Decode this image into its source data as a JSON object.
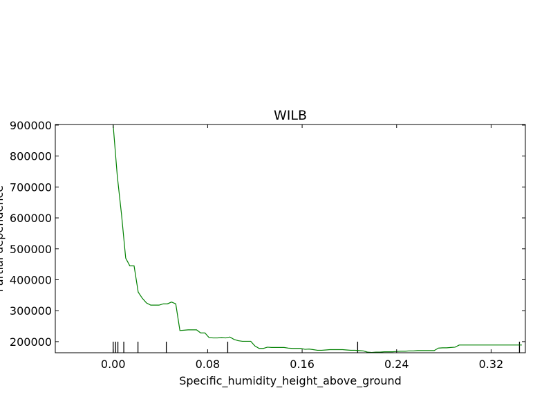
{
  "chart_data": {
    "type": "line",
    "title": "WILB",
    "xlabel": "Specific_humidity_height_above_ground",
    "ylabel": "Partial dependence",
    "xlim": [
      -0.049,
      0.349
    ],
    "ylim": [
      164000,
      902000
    ],
    "xticks": [
      0.0,
      0.08,
      0.16,
      0.24,
      0.32
    ],
    "xtick_labels": [
      "0.00",
      "0.08",
      "0.16",
      "0.24",
      "0.32"
    ],
    "yticks": [
      200000,
      300000,
      400000,
      500000,
      600000,
      700000,
      800000,
      900000
    ],
    "ytick_labels": [
      "200000",
      "300000",
      "400000",
      "500000",
      "600000",
      "700000",
      "800000",
      "900000"
    ],
    "grid": false,
    "series": [
      {
        "color": "#008000",
        "x": [
          0.0,
          0.0035,
          0.0071,
          0.0106,
          0.0141,
          0.0177,
          0.0212,
          0.0247,
          0.0282,
          0.0318,
          0.0353,
          0.0388,
          0.0424,
          0.0459,
          0.0494,
          0.053,
          0.0565,
          0.06,
          0.0635,
          0.0671,
          0.0706,
          0.0741,
          0.0777,
          0.0812,
          0.0847,
          0.0883,
          0.0918,
          0.0953,
          0.0988,
          0.1024,
          0.1059,
          0.1094,
          0.113,
          0.1165,
          0.12,
          0.1236,
          0.1271,
          0.1306,
          0.1341,
          0.1377,
          0.1412,
          0.1447,
          0.1483,
          0.1518,
          0.1553,
          0.1589,
          0.1624,
          0.1659,
          0.1694,
          0.173,
          0.1765,
          0.18,
          0.1836,
          0.1871,
          0.1906,
          0.1942,
          0.1977,
          0.2012,
          0.2047,
          0.2083,
          0.2118,
          0.2153,
          0.2189,
          0.2224,
          0.2259,
          0.2295,
          0.233,
          0.2365,
          0.24,
          0.2436,
          0.2471,
          0.2506,
          0.2542,
          0.2577,
          0.2612,
          0.2648,
          0.2683,
          0.2718,
          0.2753,
          0.2789,
          0.2824,
          0.2859,
          0.2895,
          0.293,
          0.2965,
          0.3001,
          0.3036,
          0.3071,
          0.3106,
          0.3142,
          0.3177,
          0.3212,
          0.3248,
          0.3283,
          0.3318,
          0.3354,
          0.3389,
          0.3424,
          0.346
        ],
        "y": [
          900000,
          735000,
          610000,
          470000,
          445000,
          445000,
          360000,
          340000,
          325000,
          318000,
          318000,
          318000,
          322000,
          322000,
          328000,
          322000,
          236000,
          237000,
          238000,
          238000,
          238000,
          228000,
          228000,
          213000,
          212000,
          212000,
          213000,
          212000,
          215000,
          207000,
          203000,
          201000,
          201000,
          201000,
          186000,
          178000,
          178000,
          182000,
          181000,
          181000,
          181000,
          181000,
          179000,
          178000,
          178000,
          178000,
          175000,
          176000,
          174000,
          172000,
          172000,
          173000,
          174000,
          174000,
          174000,
          174000,
          173000,
          172000,
          172000,
          171000,
          170000,
          166000,
          165000,
          166000,
          166000,
          167000,
          167000,
          167000,
          168000,
          169000,
          169000,
          170000,
          170000,
          171000,
          171000,
          171000,
          171000,
          171000,
          179000,
          180000,
          180000,
          181000,
          182000,
          189000,
          189000,
          189000,
          189000,
          189000,
          189000,
          189000,
          189000,
          189000,
          189000,
          189000,
          189000,
          189000,
          189000,
          189000,
          189000
        ]
      }
    ],
    "rug_x": [
      0.0,
      0.002,
      0.004,
      0.009,
      0.021,
      0.045,
      0.097,
      0.207,
      0.344
    ]
  }
}
